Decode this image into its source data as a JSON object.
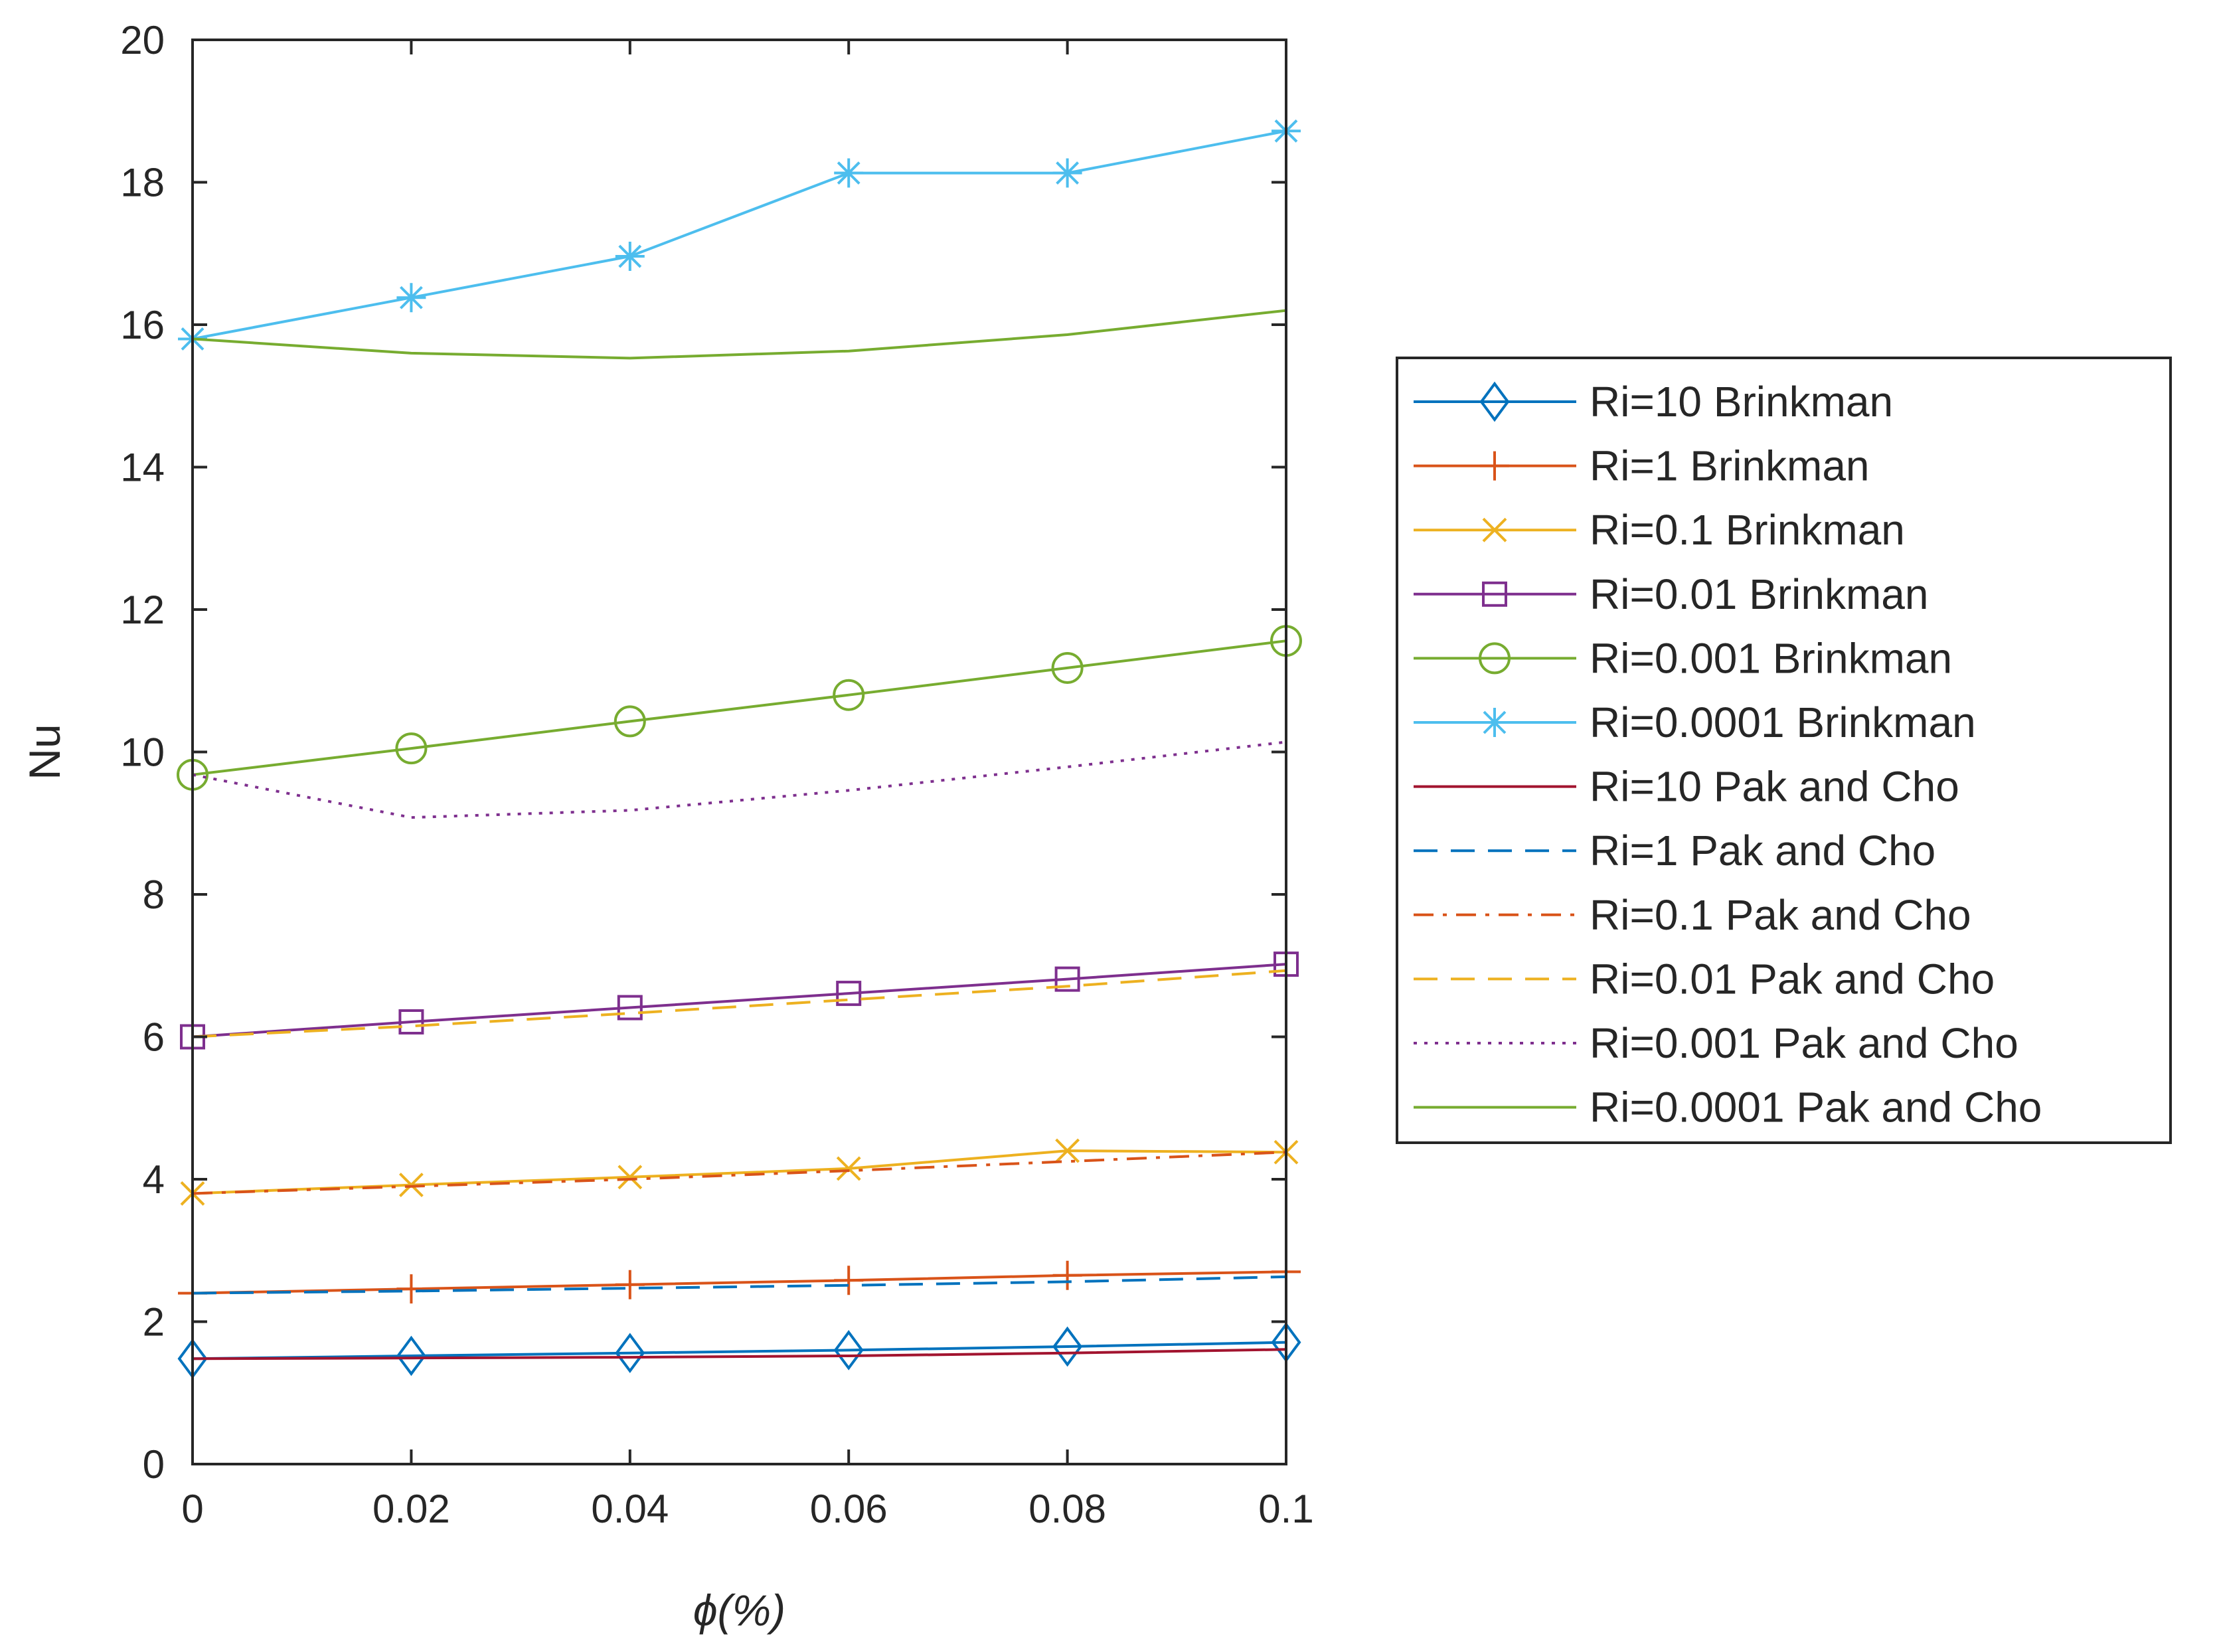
{
  "chart_data": {
    "type": "line",
    "xlabel": "ϕ(%)",
    "ylabel": "Nu",
    "xlim": [
      0,
      0.1
    ],
    "ylim": [
      0,
      20
    ],
    "x": [
      0,
      0.02,
      0.04,
      0.06,
      0.08,
      0.1
    ],
    "x_ticks": [
      "0",
      "0.02",
      "0.04",
      "0.06",
      "0.08",
      "0.1"
    ],
    "y_ticks": [
      "0",
      "2",
      "4",
      "6",
      "8",
      "10",
      "12",
      "14",
      "16",
      "18",
      "20"
    ],
    "legend_position": "right",
    "grid": false,
    "series": [
      {
        "name": "Ri=10 Brinkman",
        "values": [
          1.48,
          1.52,
          1.56,
          1.6,
          1.65,
          1.71
        ],
        "color": "#0072BD",
        "marker": "diamond",
        "line": "solid"
      },
      {
        "name": "Ri=1 Brinkman",
        "values": [
          2.4,
          2.46,
          2.52,
          2.58,
          2.65,
          2.7
        ],
        "color": "#D95319",
        "marker": "plus",
        "line": "solid"
      },
      {
        "name": "Ri=0.1 Brinkman",
        "values": [
          3.8,
          3.92,
          4.03,
          4.15,
          4.4,
          4.38
        ],
        "color": "#EDB120",
        "marker": "x",
        "line": "solid"
      },
      {
        "name": "Ri=0.01 Brinkman",
        "values": [
          6.0,
          6.21,
          6.41,
          6.61,
          6.81,
          7.02
        ],
        "color": "#7E2F8E",
        "marker": "square",
        "line": "solid"
      },
      {
        "name": "Ri=0.001 Brinkman",
        "values": [
          9.68,
          10.05,
          10.43,
          10.8,
          11.18,
          11.56
        ],
        "color": "#77AC30",
        "marker": "circle",
        "line": "solid"
      },
      {
        "name": "Ri=0.0001 Brinkman",
        "values": [
          15.8,
          16.38,
          16.96,
          18.13,
          18.13,
          18.72
        ],
        "color": "#4DBEEE",
        "marker": "asterisk",
        "line": "solid"
      },
      {
        "name": "Ri=10 Pak and Cho",
        "values": [
          1.48,
          1.49,
          1.5,
          1.52,
          1.56,
          1.61
        ],
        "color": "#A2142F",
        "marker": "none",
        "line": "solid"
      },
      {
        "name": "Ri=1 Pak and Cho",
        "values": [
          2.4,
          2.43,
          2.47,
          2.51,
          2.56,
          2.63
        ],
        "color": "#0072BD",
        "marker": "none",
        "line": "dashed"
      },
      {
        "name": "Ri=0.1 Pak and Cho",
        "values": [
          3.8,
          3.9,
          4.0,
          4.12,
          4.25,
          4.38
        ],
        "color": "#D95319",
        "marker": "none",
        "line": "dashdot"
      },
      {
        "name": "Ri=0.01 Pak and Cho",
        "values": [
          6.0,
          6.15,
          6.33,
          6.52,
          6.71,
          6.93
        ],
        "color": "#EDB120",
        "marker": "none",
        "line": "dashed"
      },
      {
        "name": "Ri=0.001 Pak and Cho",
        "values": [
          9.68,
          9.08,
          9.18,
          9.46,
          9.79,
          10.14
        ],
        "color": "#7E2F8E",
        "marker": "none",
        "line": "dotted"
      },
      {
        "name": "Ri=0.0001 Pak and Cho",
        "values": [
          15.8,
          15.6,
          15.53,
          15.63,
          15.86,
          16.2
        ],
        "color": "#77AC30",
        "marker": "none",
        "line": "solid"
      }
    ]
  }
}
